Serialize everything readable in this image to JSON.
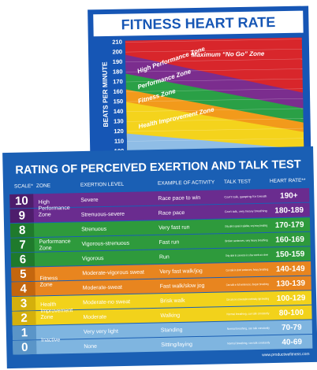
{
  "back_poster": {
    "title": "FITNESS HEART RATE",
    "axis_label": "BEATS PER MINUTE",
    "ticks": [
      "210",
      "200",
      "190",
      "180",
      "170",
      "160",
      "150",
      "140",
      "130",
      "120",
      "110",
      "100"
    ],
    "zones": [
      "Maximum “No Go” Zone",
      "High Performance Zone",
      "Performance Zone",
      "Fitness Zone",
      "Health Improvement Zone"
    ]
  },
  "front_poster": {
    "title": "RATING OF PERCEIVED EXERTION AND TALK TEST",
    "headers": [
      "SCALE*",
      "ZONE",
      "EXERTION LEVEL",
      "EXAMPLE OF ACTIVITY",
      "TALK TEST",
      "HEART RATE**"
    ],
    "groups": [
      {
        "zone": "High Performance Zone",
        "rows": [
          [
            "10",
            "Severe",
            "Race pace to win",
            "Can't talk, gasping for breath",
            "190+"
          ],
          [
            "9",
            "Strenuous-severe",
            "Race pace",
            "Can't talk, very heavy breathing",
            "180-189"
          ]
        ]
      },
      {
        "zone": "Performance Zone",
        "rows": [
          [
            "8",
            "Strenuous",
            "Very fast run",
            "Only able to speak in syllables, very heavy breathing",
            "170-179"
          ],
          [
            "7",
            "Vigorous-strenuous",
            "Fast run",
            "Broken sentences, very heavy breathing",
            "160-169"
          ],
          [
            "6",
            "Vigorous",
            "Run",
            "Only able to converse in a few words at a time",
            "150-159"
          ]
        ]
      },
      {
        "zone": "Fitness Zone",
        "rows": [
          [
            "5",
            "Moderate-vigorous sweat",
            "Very fast walk/jog",
            "Can talk in short sentences, heavy breathing",
            "140-149"
          ],
          [
            "4",
            "Moderate-sweat",
            "Fast walk/slow jog",
            "Can talk in full sentences, deeper breathing",
            "130-139"
          ]
        ]
      },
      {
        "zone": "Health Improvement Zone",
        "rows": [
          [
            "3",
            "Moderate-no sweat",
            "Brisk walk",
            "Can carry on a conversation comfortably, light breathing",
            "100-129"
          ],
          [
            "2",
            "Moderate",
            "Walking",
            "Normal breathing, can talk constantly",
            "80-100"
          ]
        ]
      },
      {
        "zone": "Inactive",
        "rows": [
          [
            "1",
            "Very very light",
            "Standing",
            "Normal breathing, can talk constantly",
            "70-79"
          ],
          [
            "0",
            "None",
            "Sitting/laying",
            "Normal breathing, can talk constantly",
            "40-69"
          ]
        ]
      }
    ],
    "url": "www.productivefitness.com"
  }
}
